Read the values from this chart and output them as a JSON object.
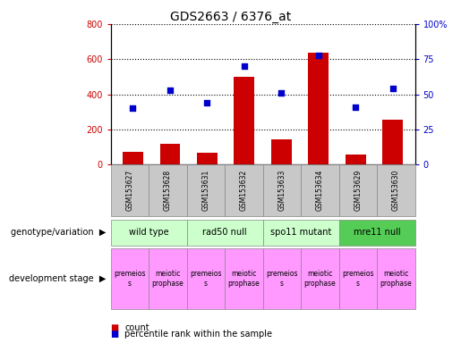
{
  "title": "GDS2663 / 6376_at",
  "samples": [
    "GSM153627",
    "GSM153628",
    "GSM153631",
    "GSM153632",
    "GSM153633",
    "GSM153634",
    "GSM153629",
    "GSM153630"
  ],
  "counts": [
    75,
    120,
    70,
    500,
    145,
    635,
    55,
    255
  ],
  "percentiles": [
    40,
    53,
    44,
    70,
    51,
    78,
    41,
    54
  ],
  "ylim_left": [
    0,
    800
  ],
  "ylim_right": [
    0,
    100
  ],
  "yticks_left": [
    0,
    200,
    400,
    600,
    800
  ],
  "yticks_right": [
    0,
    25,
    50,
    75,
    100
  ],
  "yticklabels_right": [
    "0",
    "25",
    "50",
    "75",
    "100%"
  ],
  "bar_color": "#cc0000",
  "dot_color": "#0000cc",
  "grid_color": "#000000",
  "bg_color": "#ffffff",
  "genotype_groups": [
    {
      "label": "wild type",
      "start": 0,
      "end": 2,
      "color": "#ccffcc"
    },
    {
      "label": "rad50 null",
      "start": 2,
      "end": 4,
      "color": "#ccffcc"
    },
    {
      "label": "spo11 mutant",
      "start": 4,
      "end": 6,
      "color": "#ccffcc"
    },
    {
      "label": "mre11 null",
      "start": 6,
      "end": 8,
      "color": "#55cc55"
    }
  ],
  "dev_short": [
    "premeios\ns",
    "meiotic\nprophase",
    "premeios\ns",
    "meiotic\nprophase",
    "premeios\ns",
    "meiotic\nprophase",
    "premeios\ns",
    "meiotic\nprophase"
  ],
  "dev_color": "#ff99ff",
  "sample_box_color": "#c8c8c8",
  "tick_color_left": "#cc0000",
  "tick_color_right": "#0000cc",
  "title_fontsize": 10,
  "tick_fontsize": 7,
  "small_fontsize": 6,
  "label_fontsize": 7
}
